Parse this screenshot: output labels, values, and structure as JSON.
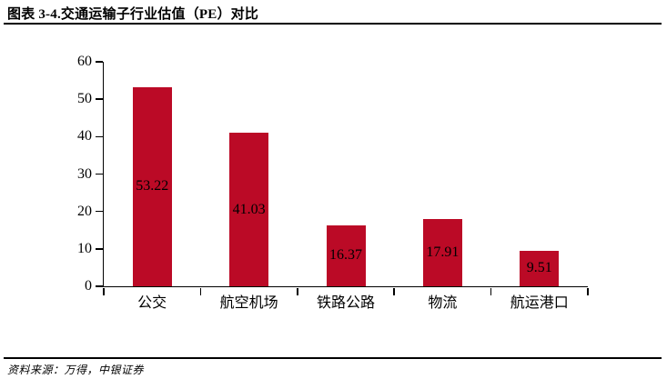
{
  "header": {
    "title": "图表 3-4.交通运输子行业估值（PE）对比"
  },
  "footer": {
    "source": "资料来源：万得，中银证券"
  },
  "chart_data": {
    "type": "bar",
    "title": "图表 3-4.交通运输子行业估值（PE）对比",
    "categories": [
      "公交",
      "航空机场",
      "铁路公路",
      "物流",
      "航运港口"
    ],
    "values": [
      53.22,
      41.03,
      16.37,
      17.91,
      9.51
    ],
    "value_labels": [
      "53.22",
      "41.03",
      "16.37",
      "17.91",
      "9.51"
    ],
    "xlabel": "",
    "ylabel": "",
    "ylim": [
      0,
      60
    ],
    "yticks": [
      0,
      10,
      20,
      30,
      40,
      50,
      60
    ],
    "grid": false,
    "legend": null,
    "bar_color": "#BB0A26",
    "label_color": "#000000",
    "axis_color": "#000000"
  }
}
